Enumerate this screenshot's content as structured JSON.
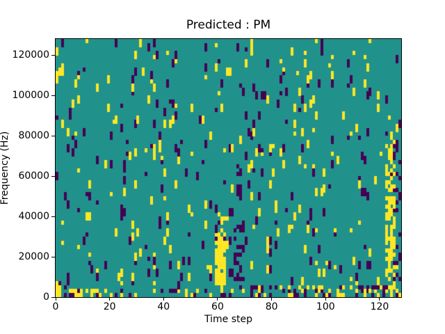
{
  "figure": {
    "title": "Predicted : PM",
    "xlabel": "Time step",
    "ylabel": "Frequency (Hz)",
    "background_color": "#ffffff",
    "text_color": "#000000"
  },
  "chart_data": {
    "type": "heatmap",
    "title": "Predicted : PM",
    "xlabel": "Time step",
    "ylabel": "Frequency (Hz)",
    "x_range": [
      0,
      128
    ],
    "y_range": [
      0,
      128000
    ],
    "x_ticks": [
      {
        "value": 0,
        "label": "0"
      },
      {
        "value": 20,
        "label": "20"
      },
      {
        "value": 40,
        "label": "40"
      },
      {
        "value": 60,
        "label": "60"
      },
      {
        "value": 80,
        "label": "80"
      },
      {
        "value": 100,
        "label": "100"
      },
      {
        "value": 120,
        "label": "120"
      }
    ],
    "y_ticks": [
      {
        "value": 0,
        "label": "0"
      },
      {
        "value": 20000,
        "label": "20000"
      },
      {
        "value": 40000,
        "label": "40000"
      },
      {
        "value": 60000,
        "label": "60000"
      },
      {
        "value": 80000,
        "label": "80000"
      },
      {
        "value": 100000,
        "label": "100000"
      },
      {
        "value": 120000,
        "label": "120000"
      }
    ],
    "grid": {
      "cols": 128,
      "rows": 64,
      "hz_per_row": 2000
    },
    "legend": "none",
    "colormap": {
      "name": "viridis",
      "value_colors": {
        "0": "#440154",
        "1": "#21918c",
        "2": "#fde725"
      },
      "background_value": 1,
      "low_color": "#440154",
      "mid_color": "#21918c",
      "high_color": "#fde725"
    },
    "pattern": {
      "description": "sparse random 1-col x 2-row marks of yellow(2) and purple(0) over teal(1); denser near bottom rows; strong yellow column t=59-62 (6k-32k Hz), purple streaks t=66-69, tall yellow column t=122-125, busy mixed bottom rows especially t>70",
      "seed": 20240613,
      "base_p_yellow": 0.022,
      "base_p_purple": 0.025,
      "low_row_boost_rows": 9,
      "low_row_boost_factor": 1.6,
      "mark_two_row_prob": 0.7,
      "hotspots": [
        {
          "t": [
            0,
            1
          ],
          "r": [
            0,
            3
          ],
          "color": "yellow",
          "p": 0.85
        },
        {
          "t": [
            5,
            9
          ],
          "r": [
            0,
            1
          ],
          "color": "yellow",
          "p": 0.95
        },
        {
          "t": [
            13,
            14
          ],
          "r": [
            0,
            1
          ],
          "color": "yellow",
          "p": 0.6
        },
        {
          "t": [
            59,
            62
          ],
          "r": [
            3,
            15
          ],
          "color": "yellow",
          "p": 0.8
        },
        {
          "t": [
            60,
            63
          ],
          "r": [
            16,
            20
          ],
          "color": "yellow",
          "p": 0.3
        },
        {
          "t": [
            66,
            69
          ],
          "r": [
            2,
            18
          ],
          "color": "purple",
          "p": 0.4
        },
        {
          "t": [
            67,
            68
          ],
          "r": [
            24,
            32
          ],
          "color": "purple",
          "p": 0.5
        },
        {
          "t": [
            122,
            125
          ],
          "r": [
            2,
            38
          ],
          "color": "yellow",
          "p": 0.55
        },
        {
          "t": [
            125,
            127
          ],
          "r": [
            2,
            40
          ],
          "color": "purple",
          "p": 0.22
        },
        {
          "t": [
            0,
            127
          ],
          "r": [
            0,
            1
          ],
          "color": "yellow",
          "p": 0.14
        },
        {
          "t": [
            0,
            127
          ],
          "r": [
            0,
            1
          ],
          "color": "purple",
          "p": 0.12
        },
        {
          "t": [
            70,
            127
          ],
          "r": [
            0,
            2
          ],
          "color": "yellow",
          "p": 0.2
        },
        {
          "t": [
            70,
            127
          ],
          "r": [
            0,
            2
          ],
          "color": "purple",
          "p": 0.26
        }
      ]
    }
  }
}
